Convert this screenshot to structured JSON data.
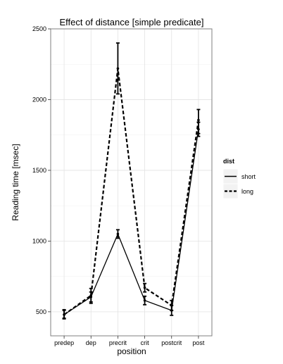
{
  "chart_data": {
    "type": "line",
    "title": "Effect of distance [simple predicate]",
    "xlabel": "position",
    "ylabel": "Reading time [msec]",
    "categories": [
      "predep",
      "dep",
      "precrit",
      "crit",
      "postcrit",
      "post"
    ],
    "ylim": [
      330,
      2500
    ],
    "yticks": [
      500,
      1000,
      1500,
      2000,
      2500
    ],
    "grid": true,
    "legend": {
      "title": "dist",
      "position": "right"
    },
    "series": [
      {
        "name": "short",
        "linetype": "solid",
        "values": [
          480,
          605,
          1050,
          580,
          510,
          1790
        ],
        "ci_low": [
          450,
          570,
          1020,
          550,
          475,
          1740
        ],
        "ci_high": [
          510,
          640,
          1080,
          610,
          545,
          1840
        ]
      },
      {
        "name": "long",
        "linetype": "dashed",
        "values": [
          480,
          615,
          2220,
          670,
          545,
          1855
        ],
        "ci_low": [
          455,
          560,
          2040,
          640,
          510,
          1760
        ],
        "ci_high": [
          515,
          665,
          2400,
          700,
          580,
          1930
        ]
      }
    ]
  }
}
